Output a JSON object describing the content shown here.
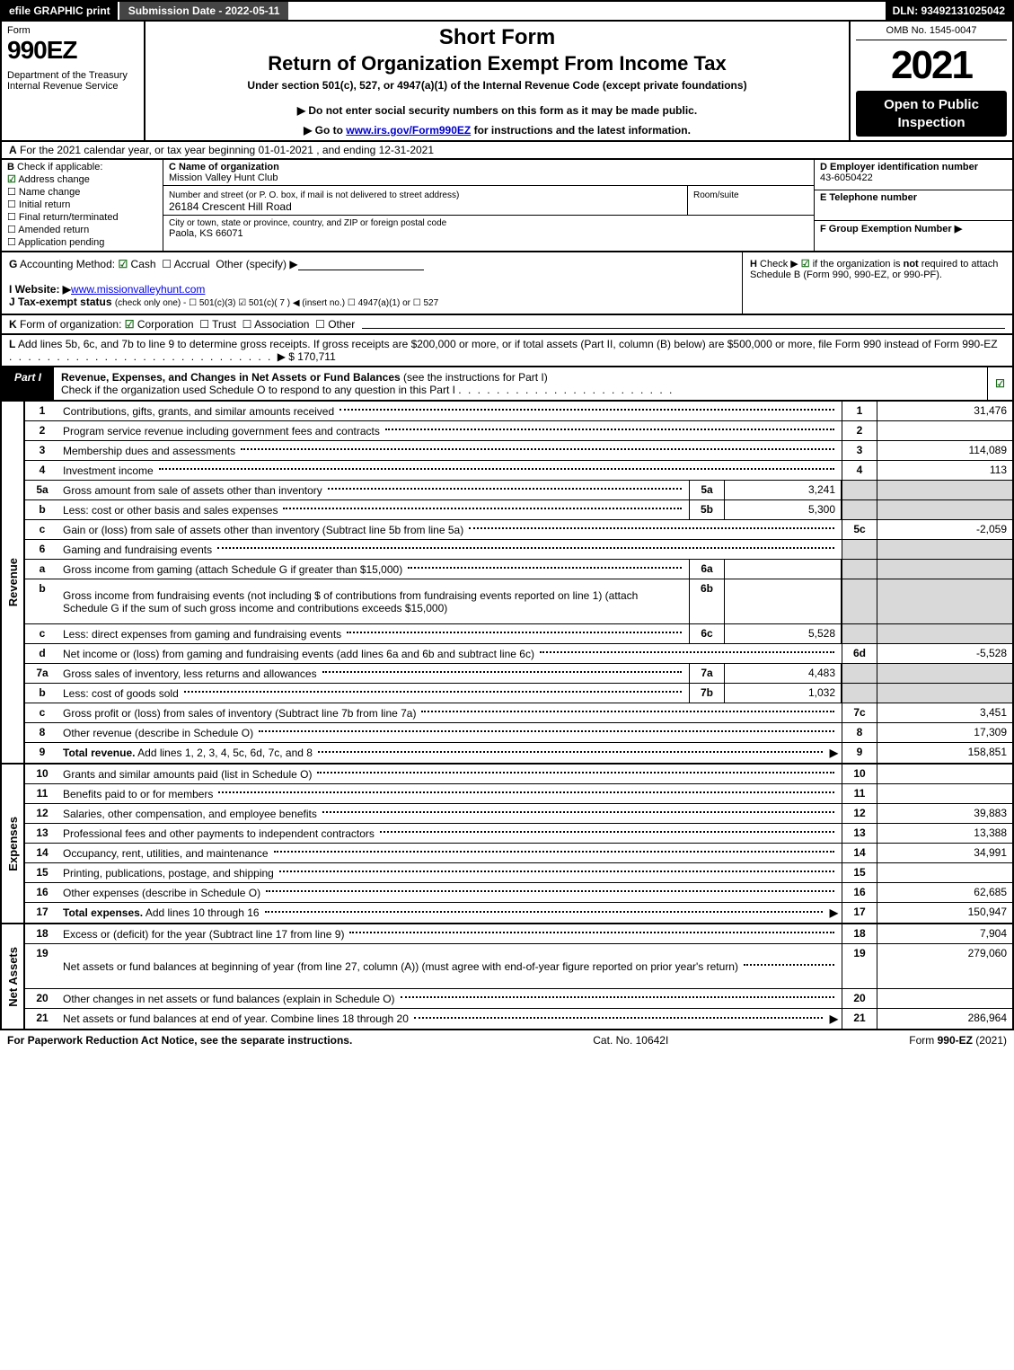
{
  "topbar": {
    "efile": "efile GRAPHIC print",
    "submission": "Submission Date - 2022-05-11",
    "dln": "DLN: 93492131025042"
  },
  "header": {
    "form_word": "Form",
    "form_no": "990EZ",
    "dept": "Department of the Treasury\nInternal Revenue Service",
    "short": "Short Form",
    "title": "Return of Organization Exempt From Income Tax",
    "under": "Under section 501(c), 527, or 4947(a)(1) of the Internal Revenue Code (except private foundations)",
    "donot": "▶ Do not enter social security numbers on this form as it may be made public.",
    "goto_prefix": "▶ Go to ",
    "goto_link": "www.irs.gov/Form990EZ",
    "goto_suffix": " for instructions and the latest information.",
    "omb": "OMB No. 1545-0047",
    "year": "2021",
    "open": "Open to Public Inspection"
  },
  "rowA": {
    "label": "A",
    "text": "For the 2021 calendar year, or tax year beginning 01-01-2021 , and ending 12-31-2021"
  },
  "colB": {
    "label": "B",
    "title": "Check if applicable:",
    "items": [
      {
        "label": "Address change",
        "checked": true
      },
      {
        "label": "Name change",
        "checked": false
      },
      {
        "label": "Initial return",
        "checked": false
      },
      {
        "label": "Final return/terminated",
        "checked": false
      },
      {
        "label": "Amended return",
        "checked": false
      },
      {
        "label": "Application pending",
        "checked": false
      }
    ]
  },
  "colC": {
    "name_label": "C Name of organization",
    "name": "Mission Valley Hunt Club",
    "addr_label": "Number and street (or P. O. box, if mail is not delivered to street address)",
    "addr": "26184 Crescent Hill Road",
    "room_label": "Room/suite",
    "room": "",
    "city_label": "City or town, state or province, country, and ZIP or foreign postal code",
    "city": "Paola, KS  66071"
  },
  "colDEF": {
    "d_label": "D Employer identification number",
    "d_val": "43-6050422",
    "e_label": "E Telephone number",
    "e_val": "",
    "f_label": "F Group Exemption Number  ▶",
    "f_val": ""
  },
  "rowG": {
    "label": "G",
    "text": "Accounting Method:",
    "cash": "Cash",
    "accrual": "Accrual",
    "other": "Other (specify) ▶"
  },
  "rowH": {
    "label": "H",
    "text": "Check ▶ ☑ if the organization is not required to attach Schedule B (Form 990, 990-EZ, or 990-PF)."
  },
  "rowI": {
    "label": "I Website: ▶",
    "link": "www.missionvalleyhunt.com"
  },
  "rowJ": {
    "label": "J Tax-exempt status",
    "text": "(check only one) - ☐ 501(c)(3) ☑ 501(c)( 7 ) ◀ (insert no.) ☐ 4947(a)(1) or ☐ 527"
  },
  "rowK": {
    "label": "K",
    "text": "Form of organization: ☑ Corporation  ☐ Trust  ☐ Association  ☐ Other"
  },
  "rowL": {
    "label": "L",
    "text": "Add lines 5b, 6c, and 7b to line 9 to determine gross receipts. If gross receipts are $200,000 or more, or if total assets (Part II, column (B) below) are $500,000 or more, file Form 990 instead of Form 990-EZ",
    "amount": "▶ $ 170,711"
  },
  "partI": {
    "label": "Part I",
    "title": "Revenue, Expenses, and Changes in Net Assets or Fund Balances",
    "note": "(see the instructions for Part I)",
    "sub": "Check if the organization used Schedule O to respond to any question in this Part I"
  },
  "revenue": {
    "side": "Revenue",
    "rows": [
      {
        "num": "1",
        "desc": "Contributions, gifts, grants, and similar amounts received",
        "rnum": "1",
        "rval": "31,476"
      },
      {
        "num": "2",
        "desc": "Program service revenue including government fees and contracts",
        "rnum": "2",
        "rval": ""
      },
      {
        "num": "3",
        "desc": "Membership dues and assessments",
        "rnum": "3",
        "rval": "114,089"
      },
      {
        "num": "4",
        "desc": "Investment income",
        "rnum": "4",
        "rval": "113"
      },
      {
        "num": "5a",
        "desc": "Gross amount from sale of assets other than inventory",
        "subnum": "5a",
        "subval": "3,241",
        "rshade": true
      },
      {
        "num": "b",
        "desc": "Less: cost or other basis and sales expenses",
        "subnum": "5b",
        "subval": "5,300",
        "rshade": true
      },
      {
        "num": "c",
        "desc": "Gain or (loss) from sale of assets other than inventory (Subtract line 5b from line 5a)",
        "rnum": "5c",
        "rval": "-2,059"
      },
      {
        "num": "6",
        "desc": "Gaming and fundraising events",
        "rshade": true,
        "nocols": true
      },
      {
        "num": "a",
        "desc": "Gross income from gaming (attach Schedule G if greater than $15,000)",
        "subnum": "6a",
        "subval": "",
        "rshade": true
      },
      {
        "num": "b",
        "desc": "Gross income from fundraising events (not including $                 of contributions from fundraising events reported on line 1) (attach Schedule G if the sum of such gross income and contributions exceeds $15,000)",
        "subnum": "6b",
        "subval": "",
        "rshade": true,
        "tall": true
      },
      {
        "num": "c",
        "desc": "Less: direct expenses from gaming and fundraising events",
        "subnum": "6c",
        "subval": "5,528",
        "rshade": true
      },
      {
        "num": "d",
        "desc": "Net income or (loss) from gaming and fundraising events (add lines 6a and 6b and subtract line 6c)",
        "rnum": "6d",
        "rval": "-5,528"
      },
      {
        "num": "7a",
        "desc": "Gross sales of inventory, less returns and allowances",
        "subnum": "7a",
        "subval": "4,483",
        "rshade": true
      },
      {
        "num": "b",
        "desc": "Less: cost of goods sold",
        "subnum": "7b",
        "subval": "1,032",
        "rshade": true
      },
      {
        "num": "c",
        "desc": "Gross profit or (loss) from sales of inventory (Subtract line 7b from line 7a)",
        "rnum": "7c",
        "rval": "3,451"
      },
      {
        "num": "8",
        "desc": "Other revenue (describe in Schedule O)",
        "rnum": "8",
        "rval": "17,309"
      },
      {
        "num": "9",
        "desc": "Total revenue. Add lines 1, 2, 3, 4, 5c, 6d, 7c, and 8",
        "rnum": "9",
        "rval": "158,851",
        "bold": true,
        "arrow": true
      }
    ]
  },
  "expenses": {
    "side": "Expenses",
    "rows": [
      {
        "num": "10",
        "desc": "Grants and similar amounts paid (list in Schedule O)",
        "rnum": "10",
        "rval": ""
      },
      {
        "num": "11",
        "desc": "Benefits paid to or for members",
        "rnum": "11",
        "rval": ""
      },
      {
        "num": "12",
        "desc": "Salaries, other compensation, and employee benefits",
        "rnum": "12",
        "rval": "39,883"
      },
      {
        "num": "13",
        "desc": "Professional fees and other payments to independent contractors",
        "rnum": "13",
        "rval": "13,388"
      },
      {
        "num": "14",
        "desc": "Occupancy, rent, utilities, and maintenance",
        "rnum": "14",
        "rval": "34,991"
      },
      {
        "num": "15",
        "desc": "Printing, publications, postage, and shipping",
        "rnum": "15",
        "rval": ""
      },
      {
        "num": "16",
        "desc": "Other expenses (describe in Schedule O)",
        "rnum": "16",
        "rval": "62,685"
      },
      {
        "num": "17",
        "desc": "Total expenses. Add lines 10 through 16",
        "rnum": "17",
        "rval": "150,947",
        "bold": true,
        "arrow": true
      }
    ]
  },
  "netassets": {
    "side": "Net Assets",
    "rows": [
      {
        "num": "18",
        "desc": "Excess or (deficit) for the year (Subtract line 17 from line 9)",
        "rnum": "18",
        "rval": "7,904"
      },
      {
        "num": "19",
        "desc": "Net assets or fund balances at beginning of year (from line 27, column (A)) (must agree with end-of-year figure reported on prior year's return)",
        "rnum": "19",
        "rval": "279,060",
        "tall": true
      },
      {
        "num": "20",
        "desc": "Other changes in net assets or fund balances (explain in Schedule O)",
        "rnum": "20",
        "rval": ""
      },
      {
        "num": "21",
        "desc": "Net assets or fund balances at end of year. Combine lines 18 through 20",
        "rnum": "21",
        "rval": "286,964",
        "arrow": true
      }
    ]
  },
  "footer": {
    "left": "For Paperwork Reduction Act Notice, see the separate instructions.",
    "mid": "Cat. No. 10642I",
    "right_prefix": "Form ",
    "right_form": "990-EZ",
    "right_suffix": " (2021)"
  }
}
